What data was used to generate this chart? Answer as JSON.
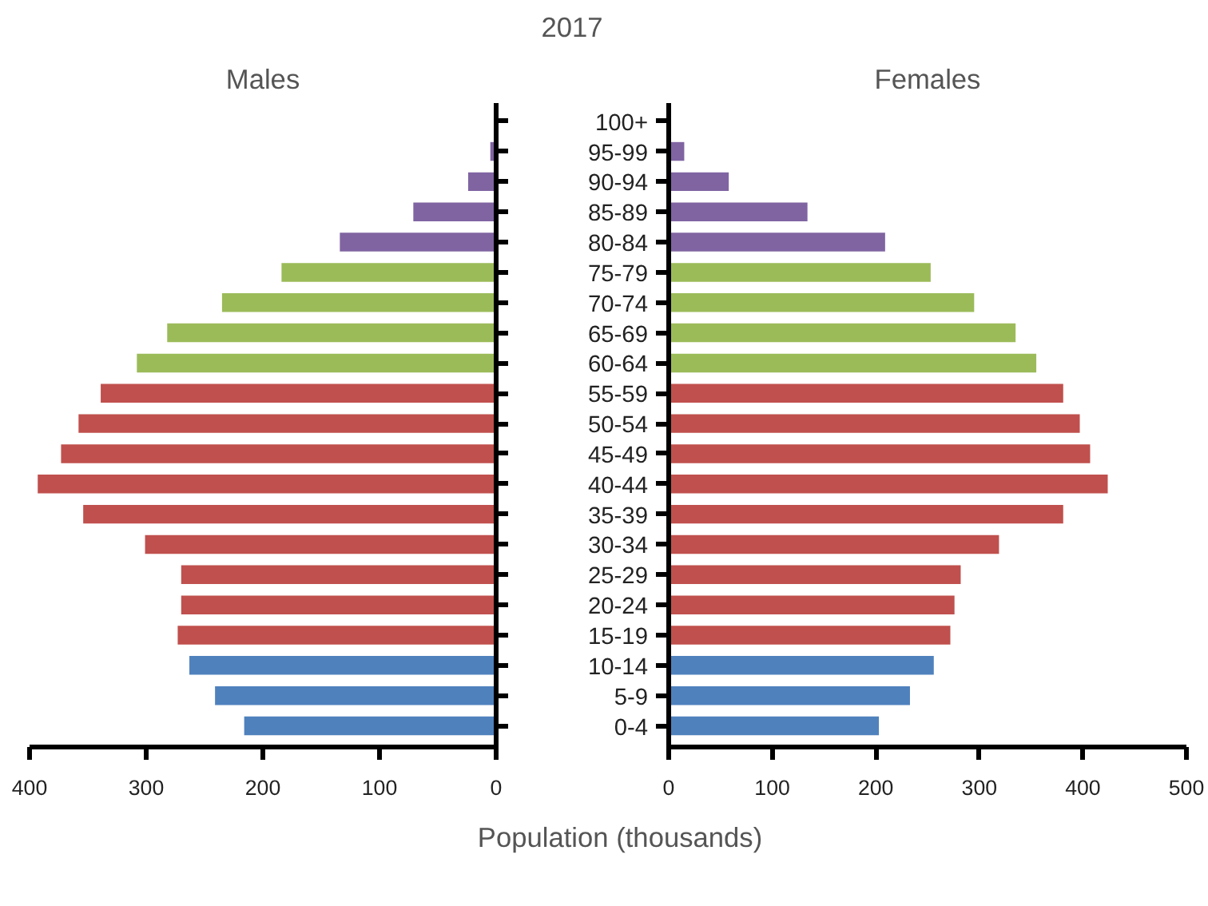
{
  "chart_data": [
    {
      "type": "bar",
      "orientation": "horizontal",
      "title": "Males",
      "tick_labels": "x",
      "categories": [
        null,
        null,
        null,
        null,
        null,
        null,
        null,
        null,
        null,
        null,
        null,
        null,
        null,
        null,
        null,
        null,
        null,
        null,
        null,
        null,
        null
      ],
      "values": [
        null,
        5,
        24,
        71,
        134,
        184,
        235,
        282,
        308,
        339,
        358,
        373,
        393,
        354,
        301,
        270,
        270,
        273,
        263,
        241,
        216
      ],
      "colors": [
        "#8064a2",
        "#8064a2",
        "#8064a2",
        "#8064a2",
        "#8064a2",
        "#9bbb59",
        "#9bbb59",
        "#9bbb59",
        "#9bbb59",
        "#c0504d",
        "#c0504d",
        "#c0504d",
        "#c0504d",
        "#c0504d",
        "#c0504d",
        "#c0504d",
        "#c0504d",
        "#c0504d",
        "#4f81bd",
        "#4f81bd",
        "#4f81bd"
      ],
      "xlim": [
        400,
        0
      ],
      "xticks": [
        400,
        300,
        200,
        100,
        0
      ],
      "grid": false
    },
    {
      "type": "bar",
      "orientation": "horizontal",
      "title": "Females",
      "annotations": [
        "2017"
      ],
      "xlabel": "Population (thousands)",
      "categories": [
        "100+",
        "95-99",
        "90-94",
        "85-89",
        "80-84",
        "75-79",
        "70-74",
        "65-69",
        "60-64",
        "55-59",
        "50-54",
        "45-49",
        "40-44",
        "35-39",
        "30-34",
        "25-29",
        "20-24",
        "15-19",
        "10-14",
        "5-9",
        "0-4"
      ],
      "values": [
        null,
        15,
        58,
        134,
        209,
        253,
        295,
        335,
        355,
        381,
        397,
        407,
        424,
        381,
        319,
        282,
        276,
        272,
        256,
        233,
        203
      ],
      "colors": [
        "#8064a2",
        "#8064a2",
        "#8064a2",
        "#8064a2",
        "#8064a2",
        "#9bbb59",
        "#9bbb59",
        "#9bbb59",
        "#9bbb59",
        "#c0504d",
        "#c0504d",
        "#c0504d",
        "#c0504d",
        "#c0504d",
        "#c0504d",
        "#c0504d",
        "#c0504d",
        "#c0504d",
        "#4f81bd",
        "#4f81bd",
        "#4f81bd"
      ],
      "xlim": [
        0,
        500
      ],
      "xticks": [
        0,
        100,
        200,
        300,
        400,
        500
      ],
      "grid": false
    }
  ]
}
